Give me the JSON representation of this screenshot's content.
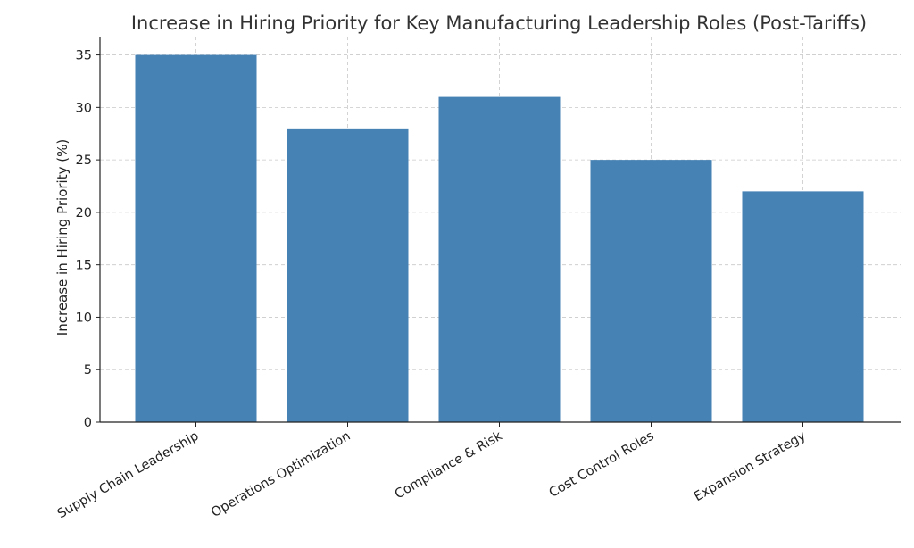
{
  "chart_data": {
    "type": "bar",
    "title": "Increase in Hiring Priority for Key Manufacturing Leadership Roles (Post-Tariffs)",
    "xlabel": "",
    "ylabel": "Increase in Hiring Priority (%)",
    "categories": [
      "Supply Chain Leadership",
      "Operations Optimization",
      "Compliance & Risk",
      "Cost Control Roles",
      "Expansion Strategy"
    ],
    "values": [
      35,
      28,
      31,
      25,
      22
    ],
    "ylim": [
      0,
      36.75
    ],
    "yticks": [
      "0",
      "5",
      "10",
      "15",
      "20",
      "25",
      "30",
      "35"
    ],
    "grid": true,
    "bar_color": "#4682b4"
  }
}
